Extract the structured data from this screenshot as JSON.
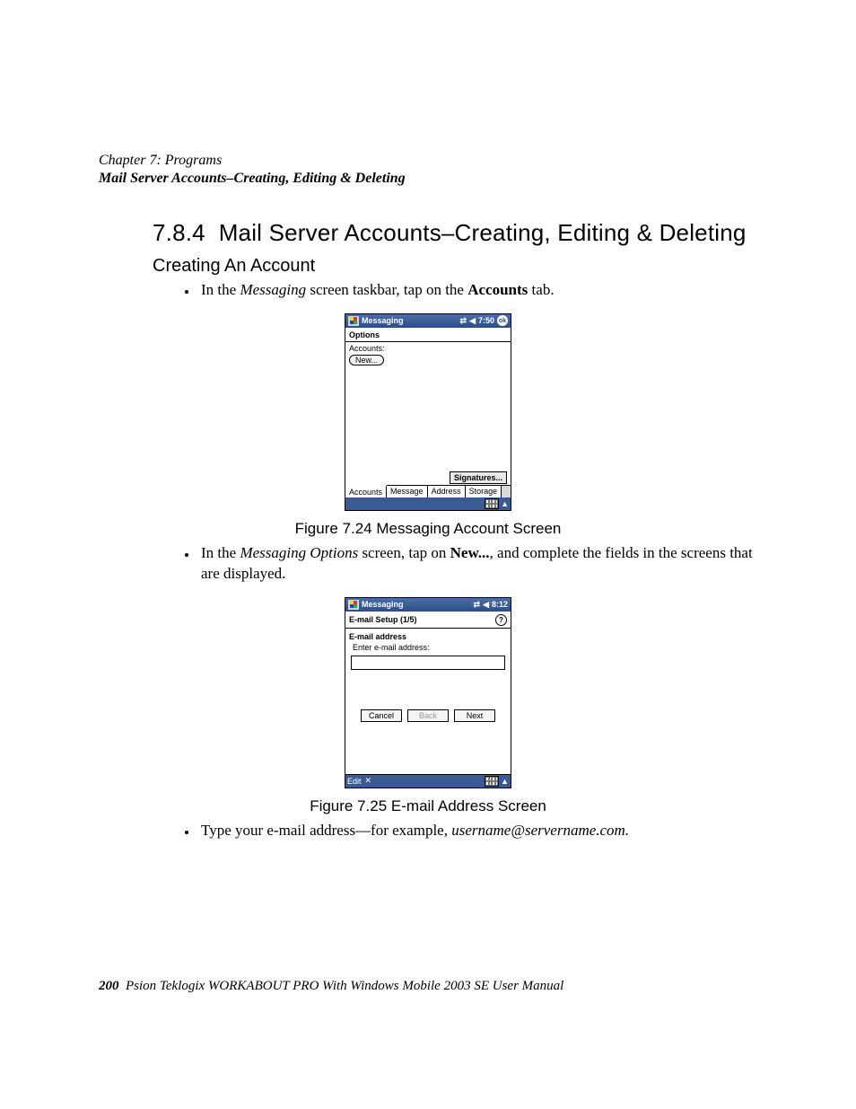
{
  "header": {
    "chapter_line": "Chapter 7:  Programs",
    "section_path": "Mail Server Accounts–Creating, Editing & Deleting"
  },
  "section": {
    "number": "7.8.4",
    "title": "Mail Server Accounts–Creating, Editing & Deleting",
    "subheading": "Creating An Account"
  },
  "bullet1": {
    "pre": "In the ",
    "ital": "Messaging",
    "mid": " screen taskbar, tap on the ",
    "bold": "Accounts",
    "post": " tab."
  },
  "fig1": {
    "caption": "Figure 7.24 Messaging Account Screen",
    "title": "Messaging",
    "time": "7:50",
    "ok": "ok",
    "options": "Options",
    "accounts_label": "Accounts:",
    "new_btn": "New...",
    "signatures_btn": "Signatures...",
    "tabs": [
      "Accounts",
      "Message",
      "Address",
      "Storage"
    ]
  },
  "bullet2": {
    "pre": "In the ",
    "ital": "Messaging Options",
    "mid": " screen, tap on ",
    "bold": "New...",
    "post": ", and complete the fields in the screens that are displayed."
  },
  "fig2": {
    "caption": "Figure 7.25 E-mail Address Screen",
    "title": "Messaging",
    "time": "8:12",
    "setup": "E-mail Setup (1/5)",
    "section_label": "E-mail address",
    "enter_label": "Enter e-mail address:",
    "cancel": "Cancel",
    "back": "Back",
    "next": "Next",
    "edit": "Edit",
    "close_x": "✕"
  },
  "bullet3": {
    "pre": "Type your e-mail address—for example, ",
    "ital": "username@servername.com.",
    "post": ""
  },
  "footer": {
    "page": "200",
    "text": "Psion Teklogix WORKABOUT PRO With Windows Mobile 2003 SE User Manual"
  },
  "glyphs": {
    "conn": "⇄",
    "speaker": "◀",
    "help": "?",
    "up": "▲"
  }
}
